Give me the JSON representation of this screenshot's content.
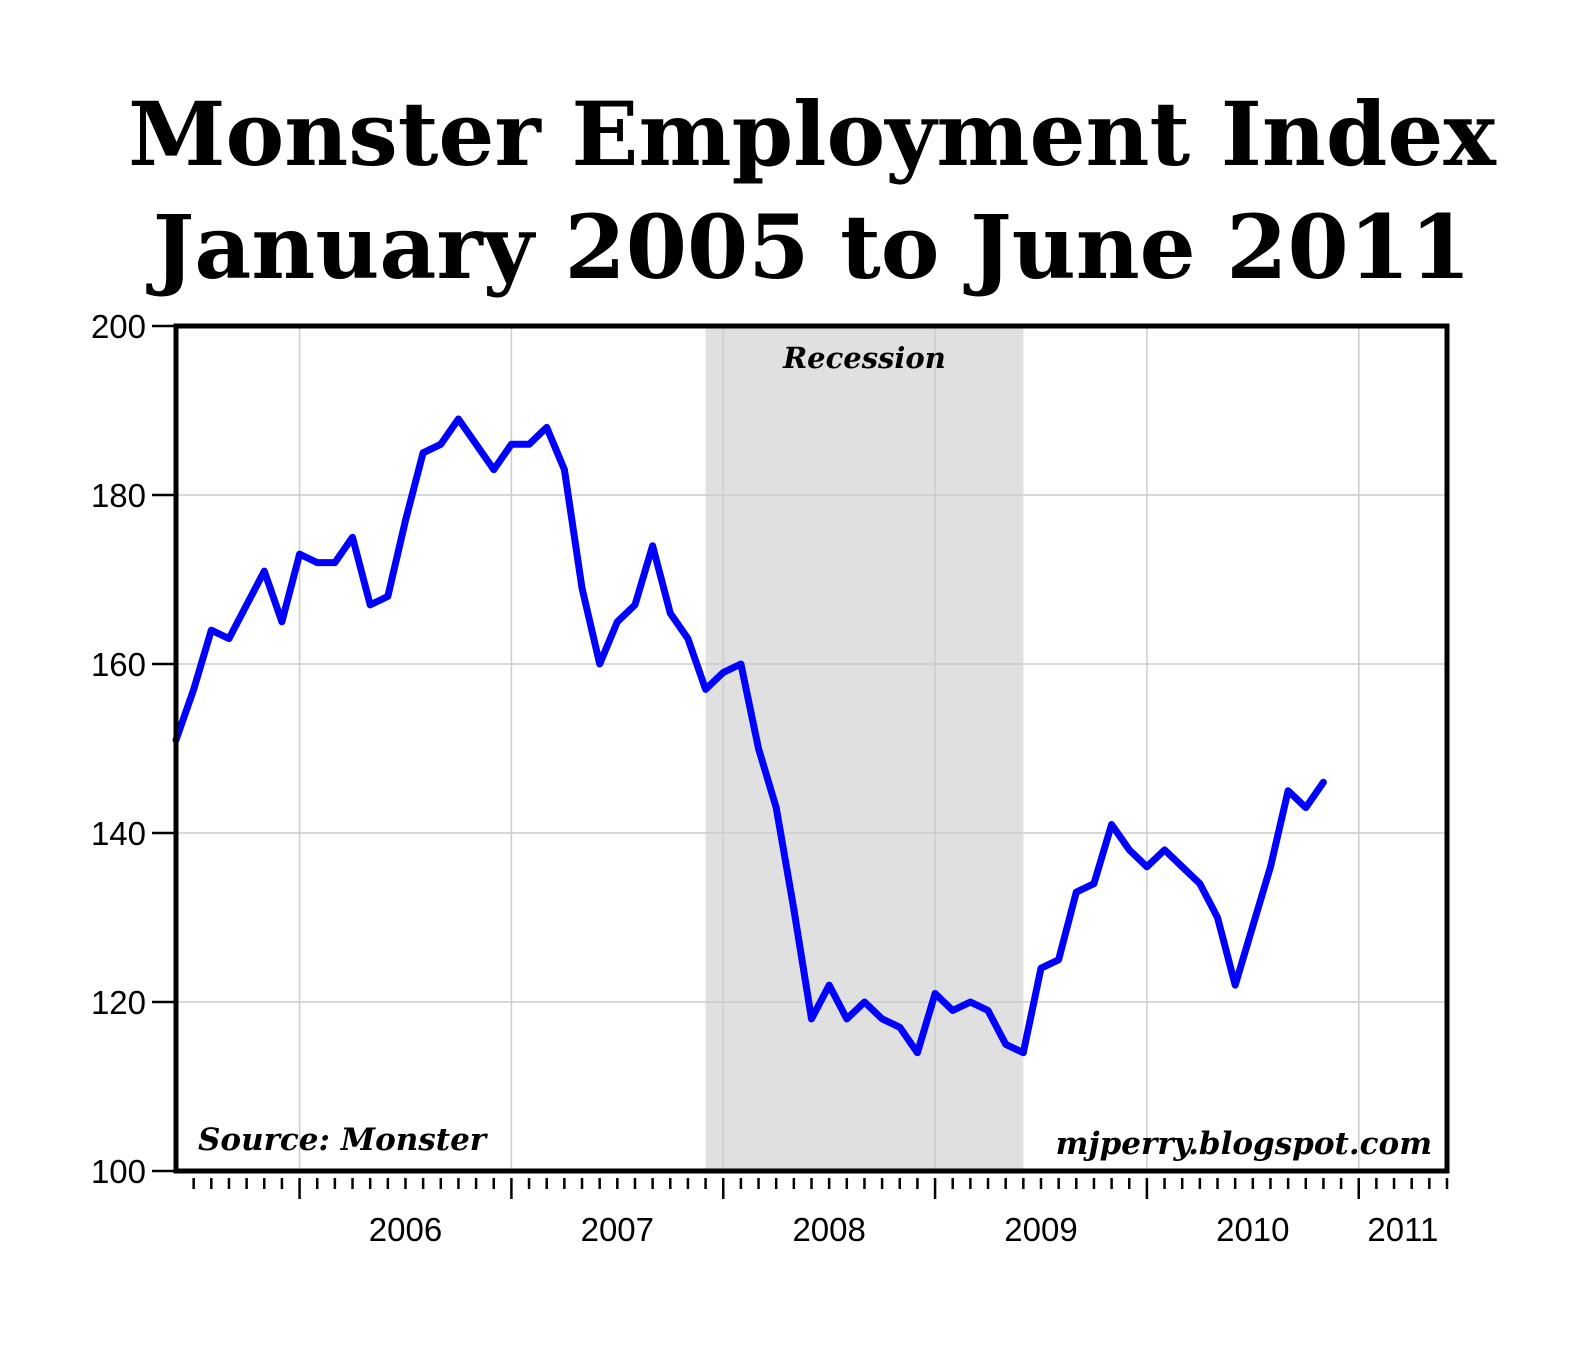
{
  "chart_data": {
    "type": "line",
    "title": "Monster Employment Index",
    "subtitle": "January 2005 to June 2011",
    "source": "Source: Monster",
    "watermark": "mjperry.blogspot.com",
    "recession_label": "Recession",
    "recession": [
      "2007-12",
      "2009-06"
    ],
    "ylim": [
      100,
      200
    ],
    "yticks": [
      100,
      120,
      140,
      160,
      180,
      200
    ],
    "xlim": [
      "2005-06",
      "2011-06"
    ],
    "xtick_labels": [
      "2006",
      "2007",
      "2008",
      "2009",
      "2010",
      "2011"
    ],
    "grid": true,
    "line_color": "#0000ff",
    "shade_color": "#e0e0e0",
    "series": [
      {
        "start": "2005-06",
        "values": [
          151,
          157,
          164,
          163,
          167,
          171,
          165,
          173,
          172,
          172,
          175,
          167,
          168,
          177,
          185,
          186,
          189,
          186,
          183,
          186,
          186,
          188,
          183,
          169,
          160,
          165,
          167,
          174,
          166,
          163,
          157,
          159,
          160,
          150,
          143,
          131,
          118,
          122,
          118,
          120,
          118,
          117,
          114,
          121,
          119,
          120,
          119,
          115,
          114,
          124,
          125,
          133,
          134,
          141,
          138,
          136,
          138,
          136,
          134,
          130,
          122,
          129,
          136,
          145,
          143,
          146
        ]
      }
    ]
  }
}
